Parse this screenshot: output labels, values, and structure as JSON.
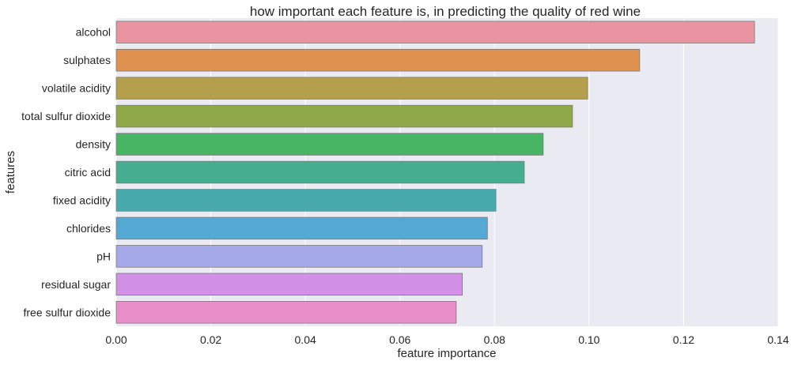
{
  "chart_data": {
    "type": "bar",
    "orientation": "horizontal",
    "title": "how important each feature is, in predicting the quality of red wine",
    "xlabel": "feature importance",
    "ylabel": "features",
    "xlim": [
      0.0,
      0.14
    ],
    "xticks": [
      "0.00",
      "0.02",
      "0.04",
      "0.06",
      "0.08",
      "0.10",
      "0.12",
      "0.14"
    ],
    "grid": true,
    "categories": [
      "alcohol",
      "sulphates",
      "volatile acidity",
      "total sulfur dioxide",
      "density",
      "citric acid",
      "fixed acidity",
      "chlorides",
      "pH",
      "residual sugar",
      "free sulfur dioxide"
    ],
    "values": [
      0.135,
      0.1107,
      0.0997,
      0.0965,
      0.0903,
      0.0863,
      0.0803,
      0.0785,
      0.0774,
      0.0732,
      0.0719
    ],
    "colors": [
      "#e994a0",
      "#df9250",
      "#b49f4c",
      "#8fa84a",
      "#47b563",
      "#45ae90",
      "#48aaac",
      "#53a9d3",
      "#a5a9ea",
      "#d390e7",
      "#e88ec8"
    ]
  }
}
